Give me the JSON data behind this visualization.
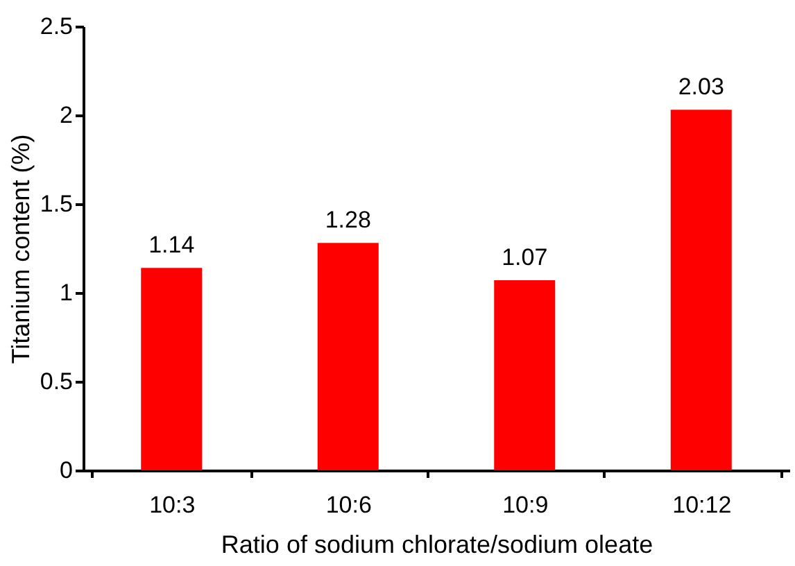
{
  "chart_data": {
    "type": "bar",
    "xlabel": "Ratio of sodium chlorate/sodium oleate",
    "ylabel": "Titanium content (%)",
    "categories": [
      "10:3",
      "10:6",
      "10:9",
      "10:12"
    ],
    "values": [
      1.14,
      1.28,
      1.07,
      2.03
    ],
    "color": "#ff0000",
    "ylim": [
      0,
      2.5
    ],
    "yticks": [
      0,
      0.5,
      1,
      1.5,
      2,
      2.5
    ],
    "grid": false,
    "data_labels": true
  }
}
